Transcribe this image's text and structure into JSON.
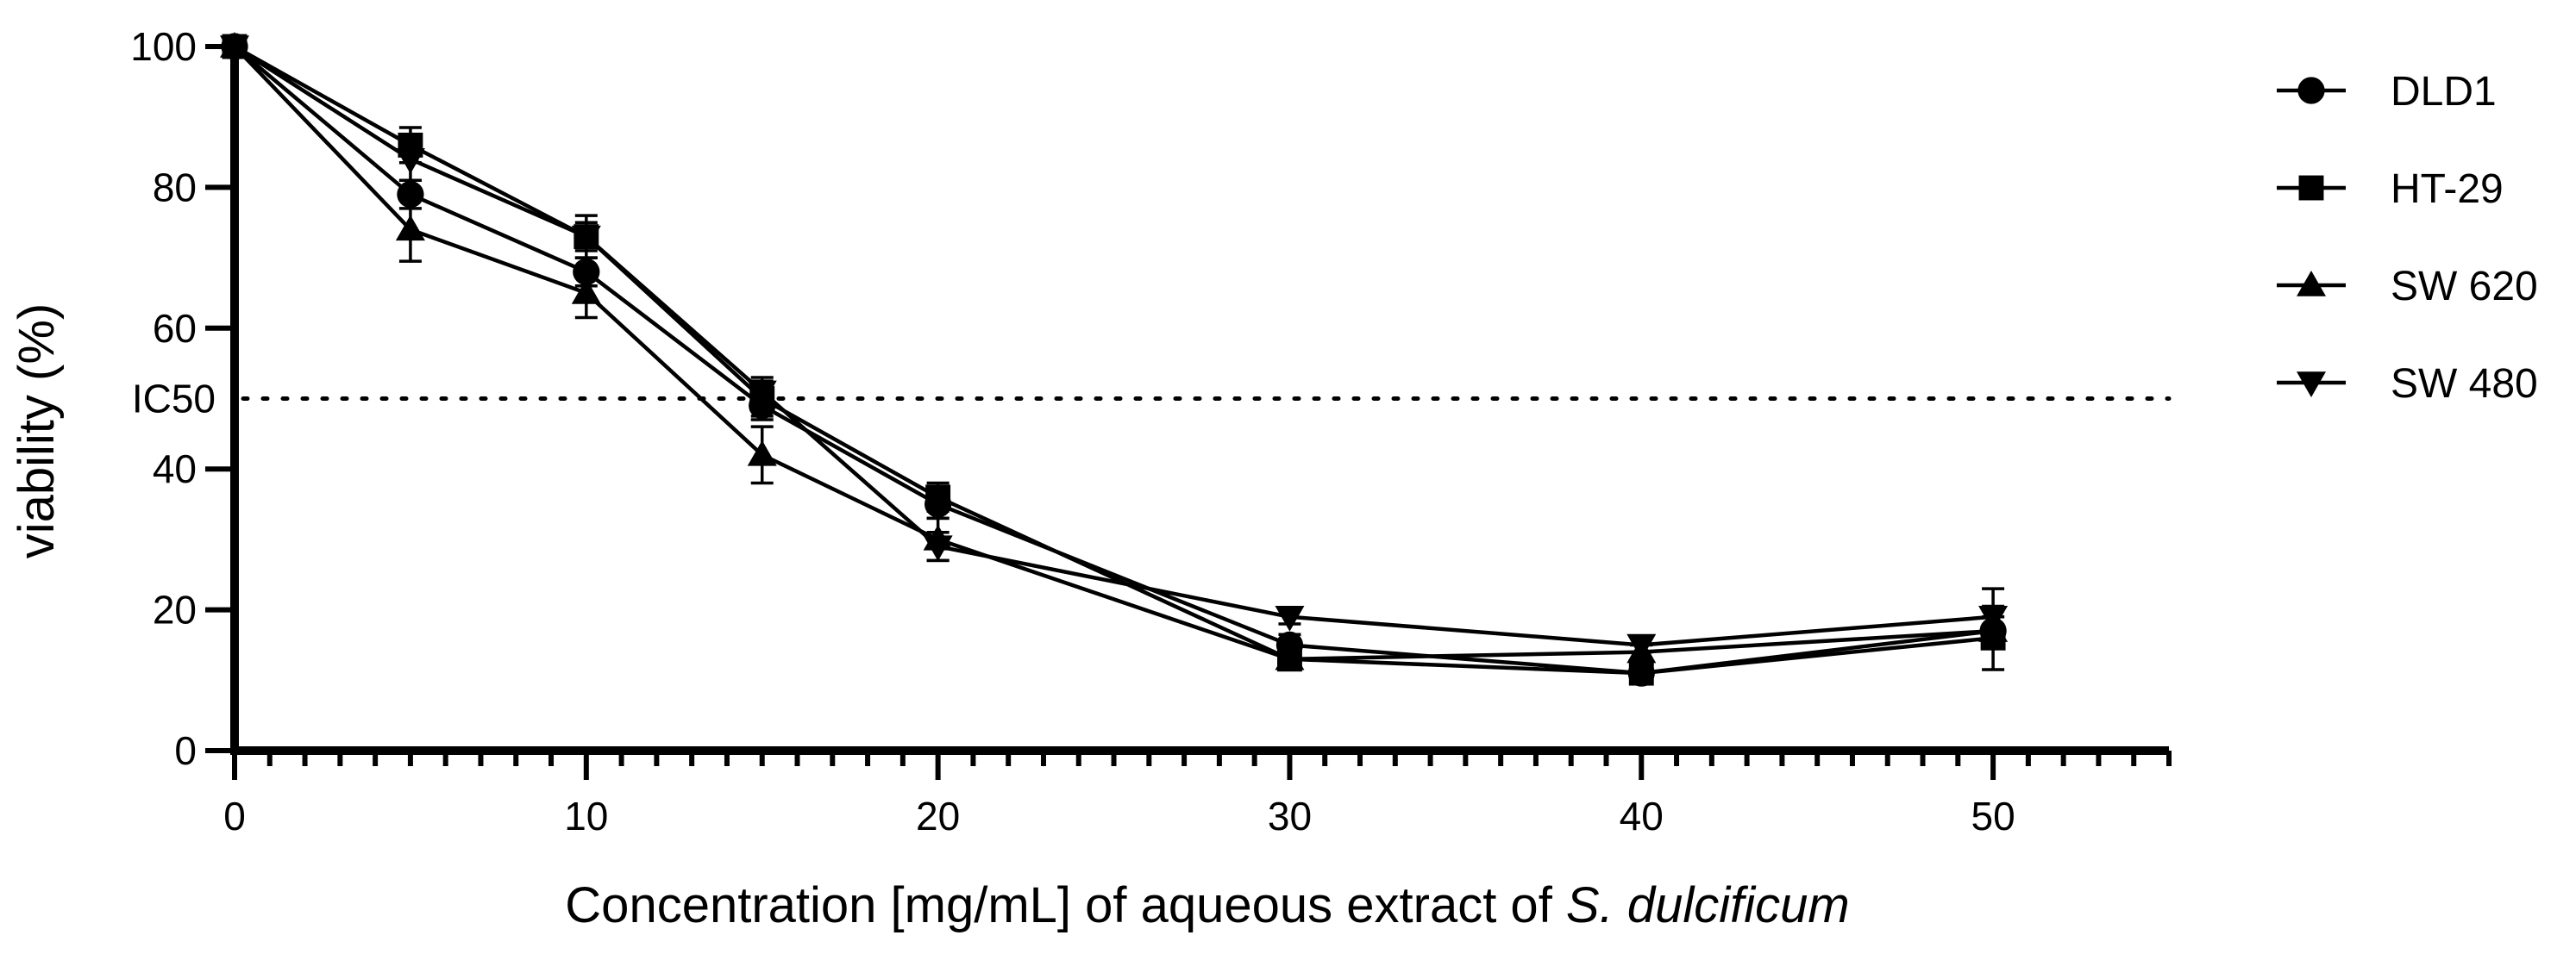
{
  "chart_data": {
    "type": "line",
    "xlabel_prefix": "Concentration [mg/mL] of aqueous extract of ",
    "xlabel_italic": "S. dulcificum",
    "ylabel": "viability (%)",
    "xlim": [
      0,
      55
    ],
    "ylim": [
      0,
      100
    ],
    "x_ticks": [
      0,
      10,
      20,
      30,
      40,
      50
    ],
    "y_ticks": [
      0,
      20,
      40,
      60,
      80,
      100
    ],
    "x": [
      0,
      5,
      10,
      15,
      20,
      30,
      40,
      50
    ],
    "reference_line": {
      "y": 50,
      "label": "IC50",
      "style": "dotted"
    },
    "legend_position": "right",
    "series": [
      {
        "name": "DLD1",
        "marker": "circle",
        "values": [
          100,
          79,
          68,
          49,
          35,
          15,
          11,
          17
        ],
        "errors": [
          0,
          2,
          2,
          2,
          2,
          1.5,
          1,
          2
        ]
      },
      {
        "name": "HT-29",
        "marker": "square",
        "values": [
          100,
          86,
          73,
          50,
          36,
          13,
          11,
          16
        ],
        "errors": [
          0,
          2.5,
          3,
          2.5,
          2,
          1.5,
          1,
          4.5
        ]
      },
      {
        "name": "SW 620",
        "marker": "triangle-up",
        "values": [
          100,
          74,
          65,
          42,
          30,
          13,
          14,
          17
        ],
        "errors": [
          0,
          4.5,
          3.5,
          4,
          3,
          1.5,
          1,
          2
        ]
      },
      {
        "name": "SW 480",
        "marker": "triangle-down",
        "values": [
          100,
          84,
          73,
          51,
          29,
          19,
          15,
          19
        ],
        "errors": [
          0,
          3,
          2,
          2,
          2,
          1,
          1,
          4
        ]
      }
    ]
  }
}
